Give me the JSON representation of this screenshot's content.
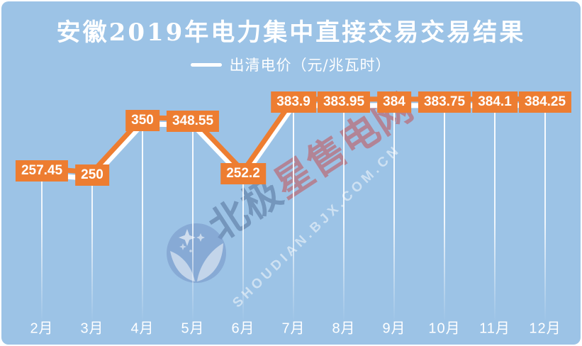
{
  "title": "安徽2019年电力集中直接交易交易结果",
  "legend": {
    "label": "出清电价（元/兆瓦时）"
  },
  "watermark": {
    "brand_blue": "北极",
    "brand_red": "星售电网",
    "url": "SHOUDIAN.BJX.COM.CN",
    "logo": "bjx-polaris-logo"
  },
  "colors": {
    "background": "#9CC3E6",
    "accent_orange": "#ED7D31",
    "line_shadow_white": "#FFFFFF",
    "text_white": "#FFFFFF"
  },
  "chart_data": {
    "type": "line",
    "title": "安徽2019年电力集中直接交易交易结果",
    "categories": [
      "2月",
      "3月",
      "4月",
      "5月",
      "6月",
      "7月",
      "8月",
      "9月",
      "10月",
      "11月",
      "12月"
    ],
    "series": [
      {
        "name": "出清电价",
        "unit": "元/兆瓦时",
        "color": "#ED7D31",
        "values": [
          257.45,
          250,
          350,
          348.55,
          252.2,
          383.9,
          383.95,
          384,
          383.75,
          384.1,
          384.25
        ]
      }
    ],
    "data_labels": [
      "257.45",
      "250",
      "350",
      "348.55",
      "252.2",
      "383.9",
      "383.95",
      "384",
      "383.75",
      "384.1",
      "384.25"
    ],
    "legend_position": "top-center",
    "y_axis_visible": false,
    "grid": "vertical drop lines from points to x-axis",
    "value_range_hint": [
      250,
      384.25
    ]
  }
}
